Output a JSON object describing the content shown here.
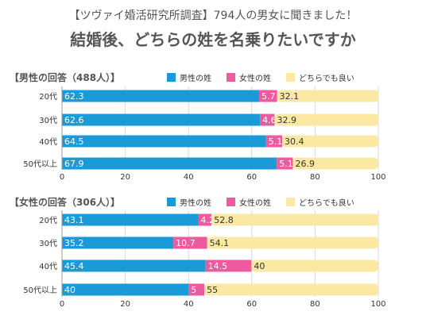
{
  "header": {
    "line1": "【ツヴァイ婚活研究所調査】794人の男女に聞きました！",
    "line2": "結婚後、どちらの姓を名乗りたいですか"
  },
  "colors": {
    "male_surname": "#1a9ad6",
    "female_surname": "#ee5a9e",
    "either": "#fbe9a3"
  },
  "chart_data": [
    {
      "type": "bar",
      "orientation": "horizontal",
      "stacked": true,
      "title": "【男性の回答（488人）】",
      "categories": [
        "20代",
        "30代",
        "40代",
        "50代以上"
      ],
      "series": [
        {
          "name": "男性の姓",
          "values": [
            62.3,
            62.6,
            64.5,
            67.9
          ]
        },
        {
          "name": "女性の姓",
          "values": [
            5.7,
            4.6,
            5.1,
            5.1
          ]
        },
        {
          "name": "どちらでも良い",
          "values": [
            32.1,
            32.9,
            30.4,
            26.9
          ]
        }
      ],
      "xlim": [
        0,
        100
      ],
      "xticks": [
        0,
        20,
        40,
        60,
        80,
        100
      ],
      "legend": "top-right"
    },
    {
      "type": "bar",
      "orientation": "horizontal",
      "stacked": true,
      "title": "【女性の回答（306人）】",
      "categories": [
        "20代",
        "30代",
        "40代",
        "50代以上"
      ],
      "series": [
        {
          "name": "男性の姓",
          "values": [
            43.1,
            35.2,
            45.4,
            40
          ]
        },
        {
          "name": "女性の姓",
          "values": [
            4.2,
            10.7,
            14.5,
            5
          ]
        },
        {
          "name": "どちらでも良い",
          "values": [
            52.8,
            54.1,
            40,
            55
          ]
        }
      ],
      "xlim": [
        0,
        100
      ],
      "xticks": [
        0,
        20,
        40,
        60,
        80,
        100
      ],
      "legend": "top-right"
    }
  ]
}
